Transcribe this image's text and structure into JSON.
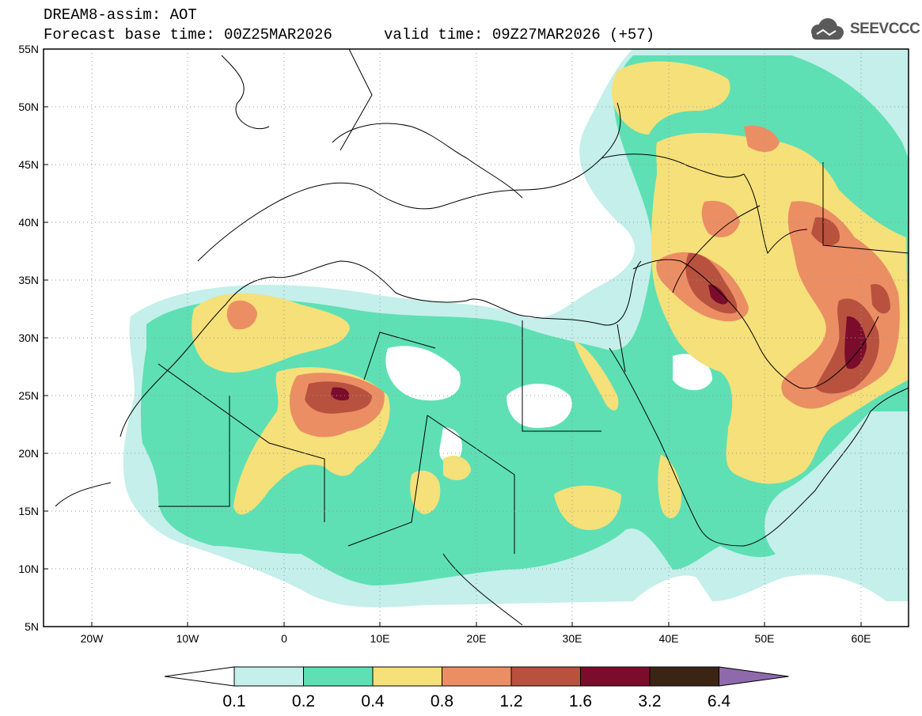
{
  "header": {
    "title": "DREAM8-assim: AOT",
    "base_time": "Forecast base time: 00Z25MAR2026",
    "valid_time": "valid time: 09Z27MAR2026 (+57)",
    "logo_text": "SEEVCCC"
  },
  "map": {
    "lat_labels": [
      "55N",
      "50N",
      "45N",
      "40N",
      "35N",
      "30N",
      "25N",
      "20N",
      "15N",
      "10N",
      "5N"
    ],
    "lon_labels": [
      "20W",
      "10W",
      "0",
      "10E",
      "20E",
      "30E",
      "40E",
      "50E",
      "60E"
    ]
  },
  "legend": {
    "labels": [
      "0.1",
      "0.2",
      "0.4",
      "0.8",
      "1.2",
      "1.6",
      "3.2",
      "6.4"
    ],
    "colors": [
      "#c4efea",
      "#5ee0b4",
      "#f5e07a",
      "#eb8e64",
      "#b8513e",
      "#7b0c2c",
      "#3b2414",
      "#8e6aac"
    ],
    "low_color": "#ffffff"
  }
}
